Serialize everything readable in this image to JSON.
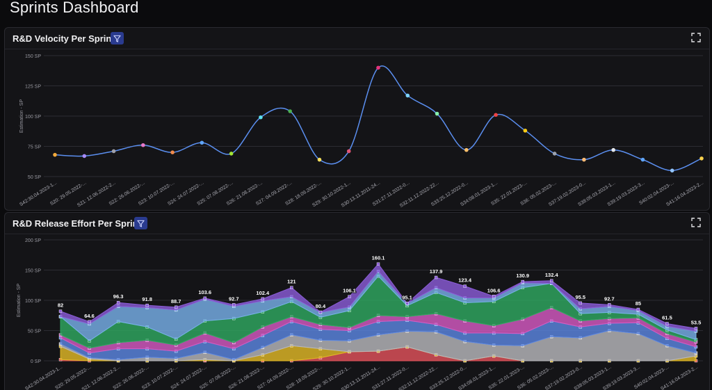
{
  "page": {
    "title": "Sprints Dashboard"
  },
  "colors": {
    "accent": "#2a3b8f",
    "line": "#5b8ff0",
    "grid": "#2c2c33",
    "panel": "#141417"
  },
  "panels": [
    {
      "title": "R&D Velocity Per Sprint",
      "filter_icon": "filter-icon",
      "expand_icon": "expand-icon"
    },
    {
      "title": "R&D Release Effort Per Sprint",
      "filter_icon": "filter-icon",
      "expand_icon": "expand-icon"
    }
  ],
  "chart_data": [
    {
      "type": "line",
      "title": "R&D Velocity Per Sprint",
      "ylabel": "Estimation - SP",
      "ylim": [
        50,
        150
      ],
      "yticks": [
        "50 SP",
        "75 SP",
        "100 SP",
        "125 SP",
        "150 SP"
      ],
      "grid": true,
      "categories": [
        "S42:30.04.2023-1...",
        "S20: 29.05.2022-...",
        "S21: 12.06.2022-2...",
        "S22: 26.06.2022-...",
        "S23: 10.07.2022-...",
        "S24: 24.07.2022-...",
        "S25: 07.08.2022-...",
        "S26: 21.08.2022-...",
        "S27: 04.09.2022-...",
        "S28: 18.09.2022-...",
        "S29: 30.10.2022-1...",
        "S30:13.11.2011-24...",
        "S31:27.11.2022-0...",
        "S32:11.12.2022-22...",
        "S33:25.12.2022-0...",
        "S34:08.01.2023-1...",
        "S35: 22.01.2023-...",
        "S36: 05.02.2023-...",
        "S37:19.02.2023-0...",
        "S38:05.03.2023-1...",
        "S39:19.03.2023-3...",
        "S40:02.04.2023-...",
        "S41:16.04.2023-2..."
      ],
      "values": [
        68,
        67,
        71,
        76,
        70,
        78,
        69,
        99,
        104,
        64,
        71,
        140,
        117,
        102,
        72,
        101,
        88,
        69,
        64,
        72,
        64,
        55,
        65
      ],
      "point_colors": [
        "#f2a93b",
        "#a78bfa",
        "#a0a0a8",
        "#e879c9",
        "#f08a4b",
        "#60a5fa",
        "#a3e635",
        "#5ee0f0",
        "#4caf50",
        "#f6e05e",
        "#e05577",
        "#e5337a",
        "#7dd3fc",
        "#86efac",
        "#fbbf6a",
        "#ef4444",
        "#facc15",
        "#9ca3af",
        "#fdba74",
        "#e5e7eb",
        "#60a5fa",
        "#93c5fd",
        "#fcd34d"
      ]
    },
    {
      "type": "area",
      "title": "R&D Release Effort Per Sprint",
      "ylabel": "Estimation - SP",
      "ylim": [
        0,
        200
      ],
      "yticks": [
        "0 SP",
        "50 SP",
        "100 SP",
        "150 SP",
        "200 SP"
      ],
      "grid": true,
      "stacked": true,
      "categories": [
        "S42:30.04.2023-1...",
        "S20: 29.05.2022-...",
        "S21: 12.06.2022-2...",
        "S22: 26.06.2022-...",
        "S23: 10.07.2022-...",
        "S24: 24.07.2022-...",
        "S25: 07.08.2022-...",
        "S26: 21.08.2022-...",
        "S27: 04.09.2022-...",
        "S28: 18.09.2022-...",
        "S29: 30.10.2022-1...",
        "S30:13.11.2011-24...",
        "S31:27.11.2022-0...",
        "S32:11.12.2022-22...",
        "S33:25.12.2022-0...",
        "S34:08.01.2023-1...",
        "S35: 22.01.2023-...",
        "S36: 05.02.2023-...",
        "S37:19.02.2023-0...",
        "S38:05.03.2023-1...",
        "S39:19.03.2023-3...",
        "S40:02.04.2023-...",
        "S41:16.04.2023-2..."
      ],
      "totals": [
        "82",
        "64.6",
        "96.3",
        "91.8",
        "88.7",
        "103.6",
        "92.7",
        "102.4",
        "121",
        "80.4",
        "106.1",
        "160.1",
        "95.1",
        "137.9",
        "123.4",
        "106.6",
        "130.9",
        "132.4",
        "95.5",
        "92.7",
        "85",
        "61.5",
        "53.5"
      ],
      "series": [
        {
          "color": "#e0525a",
          "values": [
            2,
            0,
            0,
            0,
            0,
            0,
            0,
            0,
            0,
            5,
            15,
            16,
            23,
            10,
            0,
            8,
            0,
            0,
            0,
            0,
            0,
            0,
            0
          ]
        },
        {
          "color": "#e0b826",
          "values": [
            22,
            3,
            0,
            0,
            0,
            2,
            0,
            10,
            25,
            15,
            0,
            0,
            0,
            0,
            0,
            0,
            0,
            0,
            0,
            0,
            0,
            0,
            8
          ]
        },
        {
          "color": "#b8b8bc",
          "values": [
            4,
            2,
            2,
            6,
            4,
            12,
            2,
            12,
            18,
            14,
            18,
            27,
            26,
            38,
            32,
            18,
            25,
            40,
            38,
            50,
            45,
            25,
            5
          ]
        },
        {
          "color": "#5b86e0",
          "values": [
            10,
            8,
            18,
            14,
            12,
            18,
            18,
            20,
            22,
            18,
            17,
            22,
            18,
            12,
            14,
            20,
            20,
            26,
            18,
            12,
            18,
            12,
            10
          ]
        },
        {
          "color": "#d65ac2",
          "values": [
            5,
            8,
            10,
            14,
            10,
            14,
            10,
            14,
            8,
            8,
            5,
            10,
            6,
            18,
            20,
            12,
            24,
            22,
            10,
            8,
            8,
            8,
            8
          ]
        },
        {
          "color": "#30a860",
          "values": [
            30,
            12,
            35,
            22,
            10,
            20,
            40,
            25,
            25,
            12,
            28,
            65,
            18,
            35,
            30,
            40,
            52,
            40,
            12,
            10,
            6,
            6,
            4
          ]
        },
        {
          "color": "#78b0e8",
          "values": [
            0,
            28,
            25,
            32,
            48,
            36,
            20,
            18,
            8,
            8,
            6,
            8,
            4,
            8,
            8,
            6,
            8,
            0,
            8,
            10,
            6,
            6,
            14
          ]
        },
        {
          "color": "#8a5cd6",
          "values": [
            9,
            3.6,
            6.3,
            3.8,
            4.7,
            1.6,
            2.7,
            3.4,
            15,
            0.4,
            17.1,
            12.1,
            0.1,
            16.9,
            19.4,
            2.6,
            1.9,
            4.4,
            9.5,
            2.7,
            2,
            4.5,
            4.5
          ]
        }
      ]
    }
  ]
}
